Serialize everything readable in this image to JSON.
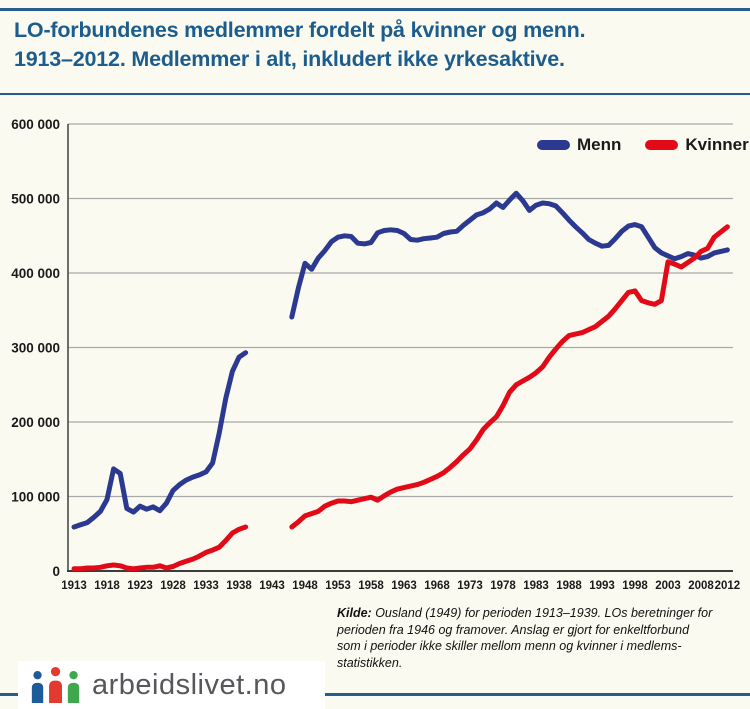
{
  "header": {
    "title": "LO-forbundenes medlemmer fordelt på kvinner og menn.\n1913–2012. Medlemmer i alt, inkludert ikke yrkesaktive."
  },
  "footer": {
    "source_label": "Kilde:",
    "source_text": " Ousland (1949) for perioden 1913–1939. LOs beretninger for\nperioden fra 1946 og framover. Anslag er gjort for enkeltforbund\nsom i perioder ikke skiller mellom menn og kvinner i medlems-\nstatistikken.",
    "brand": "arbeidslivet.no"
  },
  "colors": {
    "background": "#fafaf0",
    "rule_blue": "#255e8c",
    "title_blue": "#1c5d8e",
    "menn_line": "#2b3a90",
    "kvinner_line": "#e30a17",
    "gridline": "#a9a9a9",
    "logo_person_blue": "#1e5b99",
    "logo_person_red": "#e23a2e",
    "logo_person_green": "#3fa74d"
  },
  "chart_data": {
    "type": "line",
    "title": "LO-forbundenes medlemmer fordelt på kvinner og menn. 1913–2012. Medlemmer i alt, inkludert ikke yrkesaktive.",
    "xlabel": "",
    "ylabel": "",
    "xlim": [
      1913,
      2012
    ],
    "ylim": [
      0,
      600000
    ],
    "grid": "horizontal",
    "legend_position": "top-right",
    "gap": {
      "from": 1940,
      "to": 1945
    },
    "x_ticks": [
      1913,
      1918,
      1923,
      1928,
      1933,
      1938,
      1943,
      1948,
      1953,
      1958,
      1963,
      1968,
      1973,
      1978,
      1983,
      1988,
      1993,
      1998,
      2003,
      2008,
      2012
    ],
    "y_ticks": [
      "0",
      "100 000",
      "200 000",
      "300 000",
      "400 000",
      "500 000",
      "600 000"
    ],
    "series": [
      {
        "name": "Menn",
        "color": "#2b3a90",
        "segments": [
          [
            [
              1913,
              59000
            ],
            [
              1914,
              62000
            ],
            [
              1915,
              65000
            ],
            [
              1916,
              72000
            ],
            [
              1917,
              80000
            ],
            [
              1918,
              96000
            ],
            [
              1919,
              137000
            ],
            [
              1920,
              131000
            ],
            [
              1921,
              84000
            ],
            [
              1922,
              79000
            ],
            [
              1923,
              87000
            ],
            [
              1924,
              83000
            ],
            [
              1925,
              86000
            ],
            [
              1926,
              81000
            ],
            [
              1927,
              91000
            ],
            [
              1928,
              108000
            ],
            [
              1929,
              116000
            ],
            [
              1930,
              122000
            ],
            [
              1931,
              126000
            ],
            [
              1932,
              129000
            ],
            [
              1933,
              133000
            ],
            [
              1934,
              145000
            ],
            [
              1935,
              185000
            ],
            [
              1936,
              232000
            ],
            [
              1937,
              268000
            ],
            [
              1938,
              287000
            ],
            [
              1939,
              293000
            ]
          ],
          [
            [
              1946,
              341000
            ],
            [
              1947,
              380000
            ],
            [
              1948,
              413000
            ],
            [
              1949,
              405000
            ],
            [
              1950,
              420000
            ],
            [
              1951,
              430000
            ],
            [
              1952,
              442000
            ],
            [
              1953,
              448000
            ],
            [
              1954,
              450000
            ],
            [
              1955,
              449000
            ],
            [
              1956,
              440000
            ],
            [
              1957,
              439000
            ],
            [
              1958,
              441000
            ],
            [
              1959,
              454000
            ],
            [
              1960,
              457000
            ],
            [
              1961,
              458000
            ],
            [
              1962,
              457000
            ],
            [
              1963,
              453000
            ],
            [
              1964,
              445000
            ],
            [
              1965,
              444000
            ],
            [
              1966,
              446000
            ],
            [
              1967,
              447000
            ],
            [
              1968,
              448000
            ],
            [
              1969,
              453000
            ],
            [
              1970,
              455000
            ],
            [
              1971,
              456000
            ],
            [
              1972,
              464000
            ],
            [
              1973,
              471000
            ],
            [
              1974,
              478000
            ],
            [
              1975,
              481000
            ],
            [
              1976,
              486000
            ],
            [
              1977,
              494000
            ],
            [
              1978,
              488000
            ],
            [
              1979,
              498000
            ],
            [
              1980,
              507000
            ],
            [
              1981,
              497000
            ],
            [
              1982,
              484000
            ],
            [
              1983,
              491000
            ],
            [
              1984,
              494000
            ],
            [
              1985,
              493000
            ],
            [
              1986,
              490000
            ],
            [
              1987,
              481000
            ],
            [
              1988,
              471000
            ],
            [
              1989,
              462000
            ],
            [
              1990,
              454000
            ],
            [
              1991,
              445000
            ],
            [
              1992,
              440000
            ],
            [
              1993,
              436000
            ],
            [
              1994,
              437000
            ],
            [
              1995,
              446000
            ],
            [
              1996,
              456000
            ],
            [
              1997,
              463000
            ],
            [
              1998,
              465000
            ],
            [
              1999,
              462000
            ],
            [
              2000,
              448000
            ],
            [
              2001,
              434000
            ],
            [
              2002,
              427000
            ],
            [
              2003,
              423000
            ],
            [
              2004,
              419000
            ],
            [
              2005,
              422000
            ],
            [
              2006,
              426000
            ],
            [
              2007,
              424000
            ],
            [
              2008,
              420000
            ],
            [
              2009,
              422000
            ],
            [
              2010,
              427000
            ],
            [
              2011,
              429000
            ],
            [
              2012,
              431000
            ]
          ]
        ]
      },
      {
        "name": "Kvinner",
        "color": "#e30a17",
        "segments": [
          [
            [
              1913,
              3000
            ],
            [
              1914,
              3000
            ],
            [
              1915,
              4000
            ],
            [
              1916,
              4000
            ],
            [
              1917,
              5000
            ],
            [
              1918,
              7000
            ],
            [
              1919,
              8000
            ],
            [
              1920,
              7000
            ],
            [
              1921,
              4000
            ],
            [
              1922,
              3000
            ],
            [
              1923,
              4000
            ],
            [
              1924,
              5000
            ],
            [
              1925,
              5000
            ],
            [
              1926,
              7000
            ],
            [
              1927,
              4000
            ],
            [
              1928,
              6000
            ],
            [
              1929,
              10000
            ],
            [
              1930,
              13000
            ],
            [
              1931,
              16000
            ],
            [
              1932,
              20000
            ],
            [
              1933,
              25000
            ],
            [
              1934,
              28000
            ],
            [
              1935,
              32000
            ],
            [
              1936,
              41000
            ],
            [
              1937,
              51000
            ],
            [
              1938,
              56000
            ],
            [
              1939,
              59000
            ]
          ],
          [
            [
              1946,
              59000
            ],
            [
              1947,
              66000
            ],
            [
              1948,
              74000
            ],
            [
              1949,
              77000
            ],
            [
              1950,
              80000
            ],
            [
              1951,
              87000
            ],
            [
              1952,
              91000
            ],
            [
              1953,
              94000
            ],
            [
              1954,
              94000
            ],
            [
              1955,
              93000
            ],
            [
              1956,
              95000
            ],
            [
              1957,
              97000
            ],
            [
              1958,
              99000
            ],
            [
              1959,
              95000
            ],
            [
              1960,
              101000
            ],
            [
              1961,
              106000
            ],
            [
              1962,
              110000
            ],
            [
              1963,
              112000
            ],
            [
              1964,
              114000
            ],
            [
              1965,
              116000
            ],
            [
              1966,
              119000
            ],
            [
              1967,
              123000
            ],
            [
              1968,
              127000
            ],
            [
              1969,
              132000
            ],
            [
              1970,
              139000
            ],
            [
              1971,
              147000
            ],
            [
              1972,
              156000
            ],
            [
              1973,
              164000
            ],
            [
              1974,
              176000
            ],
            [
              1975,
              190000
            ],
            [
              1976,
              199000
            ],
            [
              1977,
              207000
            ],
            [
              1978,
              222000
            ],
            [
              1979,
              240000
            ],
            [
              1980,
              250000
            ],
            [
              1981,
              255000
            ],
            [
              1982,
              260000
            ],
            [
              1983,
              266000
            ],
            [
              1984,
              274000
            ],
            [
              1985,
              287000
            ],
            [
              1986,
              298000
            ],
            [
              1987,
              308000
            ],
            [
              1988,
              316000
            ],
            [
              1989,
              318000
            ],
            [
              1990,
              320000
            ],
            [
              1991,
              324000
            ],
            [
              1992,
              328000
            ],
            [
              1993,
              335000
            ],
            [
              1994,
              342000
            ],
            [
              1995,
              352000
            ],
            [
              1996,
              363000
            ],
            [
              1997,
              374000
            ],
            [
              1998,
              376000
            ],
            [
              1999,
              363000
            ],
            [
              2000,
              360000
            ],
            [
              2001,
              358000
            ],
            [
              2002,
              363000
            ],
            [
              2003,
              415000
            ],
            [
              2004,
              412000
            ],
            [
              2005,
              408000
            ],
            [
              2006,
              414000
            ],
            [
              2007,
              420000
            ],
            [
              2008,
              429000
            ],
            [
              2009,
              433000
            ],
            [
              2010,
              448000
            ],
            [
              2011,
              455000
            ],
            [
              2012,
              462000
            ]
          ]
        ]
      }
    ]
  }
}
